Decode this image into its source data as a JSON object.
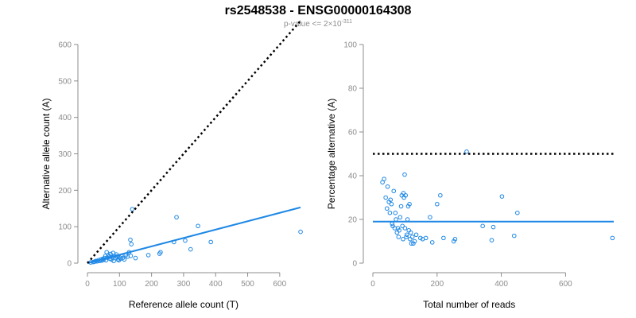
{
  "figure": {
    "title": "rs2548538 - ENSG00000164308",
    "subtitle_prefix": "p-value <= 2×10",
    "subtitle_exponent": "-311"
  },
  "colors": {
    "points": "#1e88e5",
    "fit_line": "#1e88e5",
    "reference_line": "#000000",
    "axis": "#8c8c8c"
  },
  "chart_data": [
    {
      "type": "scatter",
      "title": "",
      "xlabel": "Reference allele count (T)",
      "ylabel": "Alternative allele count (A)",
      "xlim": [
        0,
        650
      ],
      "ylim": [
        0,
        600
      ],
      "xticks": [
        0,
        100,
        200,
        300,
        400,
        500,
        600
      ],
      "yticks": [
        0,
        100,
        200,
        300,
        400,
        500,
        600
      ],
      "grid": false,
      "series": [
        {
          "role": "observed",
          "style": "circles",
          "color": "#1e88e5",
          "points": [
            [
              10,
              2
            ],
            [
              18,
              3
            ],
            [
              22,
              4
            ],
            [
              26,
              6
            ],
            [
              30,
              5
            ],
            [
              34,
              8
            ],
            [
              38,
              6
            ],
            [
              42,
              10
            ],
            [
              45,
              7
            ],
            [
              48,
              12
            ],
            [
              50,
              9
            ],
            [
              53,
              14
            ],
            [
              56,
              20
            ],
            [
              58,
              8
            ],
            [
              60,
              30
            ],
            [
              62,
              15
            ],
            [
              65,
              22
            ],
            [
              68,
              18
            ],
            [
              70,
              12
            ],
            [
              72,
              25
            ],
            [
              75,
              10
            ],
            [
              78,
              16
            ],
            [
              80,
              28
            ],
            [
              82,
              6
            ],
            [
              85,
              20
            ],
            [
              88,
              14
            ],
            [
              90,
              24
            ],
            [
              92,
              18
            ],
            [
              95,
              10
            ],
            [
              98,
              8
            ],
            [
              100,
              16
            ],
            [
              103,
              12
            ],
            [
              106,
              20
            ],
            [
              110,
              14
            ],
            [
              115,
              10
            ],
            [
              120,
              22
            ],
            [
              125,
              18
            ],
            [
              130,
              30
            ],
            [
              134,
              64
            ],
            [
              135,
              20
            ],
            [
              137,
              52
            ],
            [
              140,
              148
            ],
            [
              150,
              14
            ],
            [
              190,
              22
            ],
            [
              225,
              26
            ],
            [
              228,
              30
            ],
            [
              270,
              58
            ],
            [
              278,
              126
            ],
            [
              305,
              62
            ],
            [
              322,
              38
            ],
            [
              345,
              102
            ],
            [
              385,
              58
            ],
            [
              665,
              86
            ]
          ]
        },
        {
          "role": "fit",
          "style": "solid-line",
          "color": "#1e88e5",
          "from": [
            0,
            0
          ],
          "to": [
            665,
            153
          ]
        },
        {
          "role": "expected-50-50",
          "style": "dotted-line",
          "color": "#000000",
          "from": [
            0,
            0
          ],
          "to": [
            665,
            665
          ]
        }
      ]
    },
    {
      "type": "scatter",
      "title": "",
      "xlabel": "Total number of reads",
      "ylabel": "Percentage alternative (A)",
      "xlim": [
        0,
        750
      ],
      "ylim": [
        0,
        100
      ],
      "xticks": [
        0,
        200,
        400,
        600
      ],
      "yticks": [
        0,
        20,
        40,
        60,
        80,
        100
      ],
      "grid": false,
      "series": [
        {
          "role": "observed",
          "style": "circles",
          "color": "#1e88e5",
          "points": [
            [
              30,
              37
            ],
            [
              35,
              38.5
            ],
            [
              40,
              30
            ],
            [
              44,
              25
            ],
            [
              46,
              35
            ],
            [
              50,
              28
            ],
            [
              53,
              23
            ],
            [
              55,
              29
            ],
            [
              58,
              27
            ],
            [
              60,
              18
            ],
            [
              62,
              17
            ],
            [
              65,
              33
            ],
            [
              68,
              16
            ],
            [
              70,
              23
            ],
            [
              72,
              20
            ],
            [
              75,
              14
            ],
            [
              78,
              16
            ],
            [
              80,
              12
            ],
            [
              82,
              15
            ],
            [
              85,
              21
            ],
            [
              88,
              26
            ],
            [
              90,
              31
            ],
            [
              92,
              17
            ],
            [
              94,
              11
            ],
            [
              95,
              32
            ],
            [
              97,
              30
            ],
            [
              99,
              40.5
            ],
            [
              100,
              16
            ],
            [
              102,
              31
            ],
            [
              104,
              12
            ],
            [
              106,
              13
            ],
            [
              108,
              20
            ],
            [
              110,
              26
            ],
            [
              112,
              15
            ],
            [
              114,
              27
            ],
            [
              116,
              11
            ],
            [
              118,
              14
            ],
            [
              120,
              9
            ],
            [
              123,
              12
            ],
            [
              126,
              9
            ],
            [
              130,
              10
            ],
            [
              135,
              13
            ],
            [
              148,
              11.5
            ],
            [
              155,
              11
            ],
            [
              165,
              11.5
            ],
            [
              178,
              21
            ],
            [
              185,
              9.5
            ],
            [
              200,
              27
            ],
            [
              210,
              31
            ],
            [
              220,
              11.5
            ],
            [
              252,
              10
            ],
            [
              256,
              11
            ],
            [
              292,
              51
            ],
            [
              342,
              17
            ],
            [
              370,
              10.5
            ],
            [
              375,
              16.5
            ],
            [
              402,
              30.5
            ],
            [
              440,
              12.5
            ],
            [
              450,
              23
            ],
            [
              746,
              11.5
            ]
          ]
        },
        {
          "role": "fit",
          "style": "solid-line",
          "color": "#1e88e5",
          "from": [
            0,
            19
          ],
          "to": [
            750,
            19
          ]
        },
        {
          "role": "expected-50-50",
          "style": "dotted-line",
          "color": "#000000",
          "from": [
            0,
            50
          ],
          "to": [
            750,
            50
          ]
        }
      ]
    }
  ]
}
